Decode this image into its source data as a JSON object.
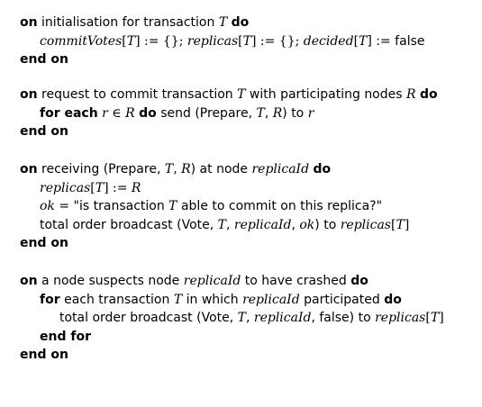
{
  "blocks": [
    {
      "lines": [
        [
          "on",
          " initialisation for transaction ",
          "T",
          " ",
          "do"
        ],
        [
          "commitVotes",
          "[",
          "T",
          "] := {}; ",
          "replicas",
          "[",
          "T",
          "] := {}; ",
          "decided",
          "[",
          "T",
          "] := false"
        ],
        [
          "end on"
        ]
      ]
    },
    {
      "lines": [
        [
          "on",
          " request to commit transaction ",
          "T",
          " with participating nodes ",
          "R",
          " ",
          "do"
        ],
        [
          "for each",
          " ",
          "r",
          " ∈ ",
          "R",
          " ",
          "do",
          " send (Prepare, ",
          "T",
          ", ",
          "R",
          ") to ",
          "r"
        ],
        [
          "end on"
        ]
      ]
    },
    {
      "lines": [
        [
          "on",
          " receiving (Prepare, ",
          "T",
          ", ",
          "R",
          ") at node ",
          "replicaId",
          " ",
          "do"
        ],
        [
          "replicas",
          "[",
          "T",
          "] := ",
          "R"
        ],
        [
          "ok",
          " = \"is transaction ",
          "T",
          " able to commit on this replica?\""
        ],
        [
          "total order broadcast (Vote, ",
          "T",
          ", ",
          "replicaId",
          ", ",
          "ok",
          ") to ",
          "replicas",
          "[",
          "T",
          "]"
        ],
        [
          "end on"
        ]
      ]
    },
    {
      "lines": [
        [
          "on",
          " a node suspects node ",
          "replicaId",
          " to have crashed ",
          "do"
        ],
        [
          "for",
          " each transaction ",
          "T",
          " in which ",
          "replicaId",
          " participated ",
          "do"
        ],
        [
          "total order broadcast (Vote, ",
          "T",
          ", ",
          "replicaId",
          ", false) to ",
          "replicas",
          "[",
          "T",
          "]"
        ],
        [
          "end for"
        ],
        [
          "end on"
        ]
      ]
    }
  ]
}
